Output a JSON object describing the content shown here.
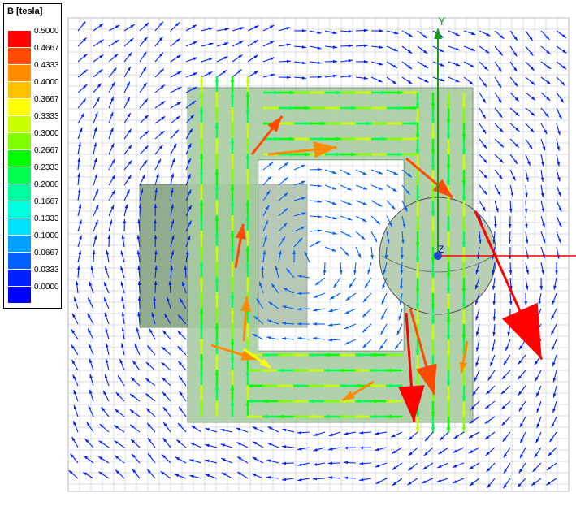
{
  "legend": {
    "title": "B [tesla]",
    "stops": [
      {
        "label": "0.5000",
        "color": "#ff0000"
      },
      {
        "label": "0.4667",
        "color": "#ff4a00"
      },
      {
        "label": "0.4333",
        "color": "#ff8c00"
      },
      {
        "label": "0.4000",
        "color": "#ffc000"
      },
      {
        "label": "0.3667",
        "color": "#ffff00"
      },
      {
        "label": "0.3333",
        "color": "#c8ff00"
      },
      {
        "label": "0.3000",
        "color": "#80ff00"
      },
      {
        "label": "0.2667",
        "color": "#00ff00"
      },
      {
        "label": "0.2333",
        "color": "#00ff50"
      },
      {
        "label": "0.2000",
        "color": "#00ffa0"
      },
      {
        "label": "0.1667",
        "color": "#00ffe0"
      },
      {
        "label": "0.1333",
        "color": "#00e0ff"
      },
      {
        "label": "0.1000",
        "color": "#00a0ff"
      },
      {
        "label": "0.0667",
        "color": "#0060ff"
      },
      {
        "label": "0.0333",
        "color": "#0020ff"
      },
      {
        "label": "0.0000",
        "color": "#0000ff"
      }
    ]
  },
  "axes": {
    "y_label": "Y",
    "z_label": "Z"
  },
  "colors": {
    "core": "#a9cca4",
    "core_dark": "#8ca88a",
    "grid": "#d9dde8",
    "y_axis": "#1a9a1a",
    "x_axis": "#ff0000"
  }
}
